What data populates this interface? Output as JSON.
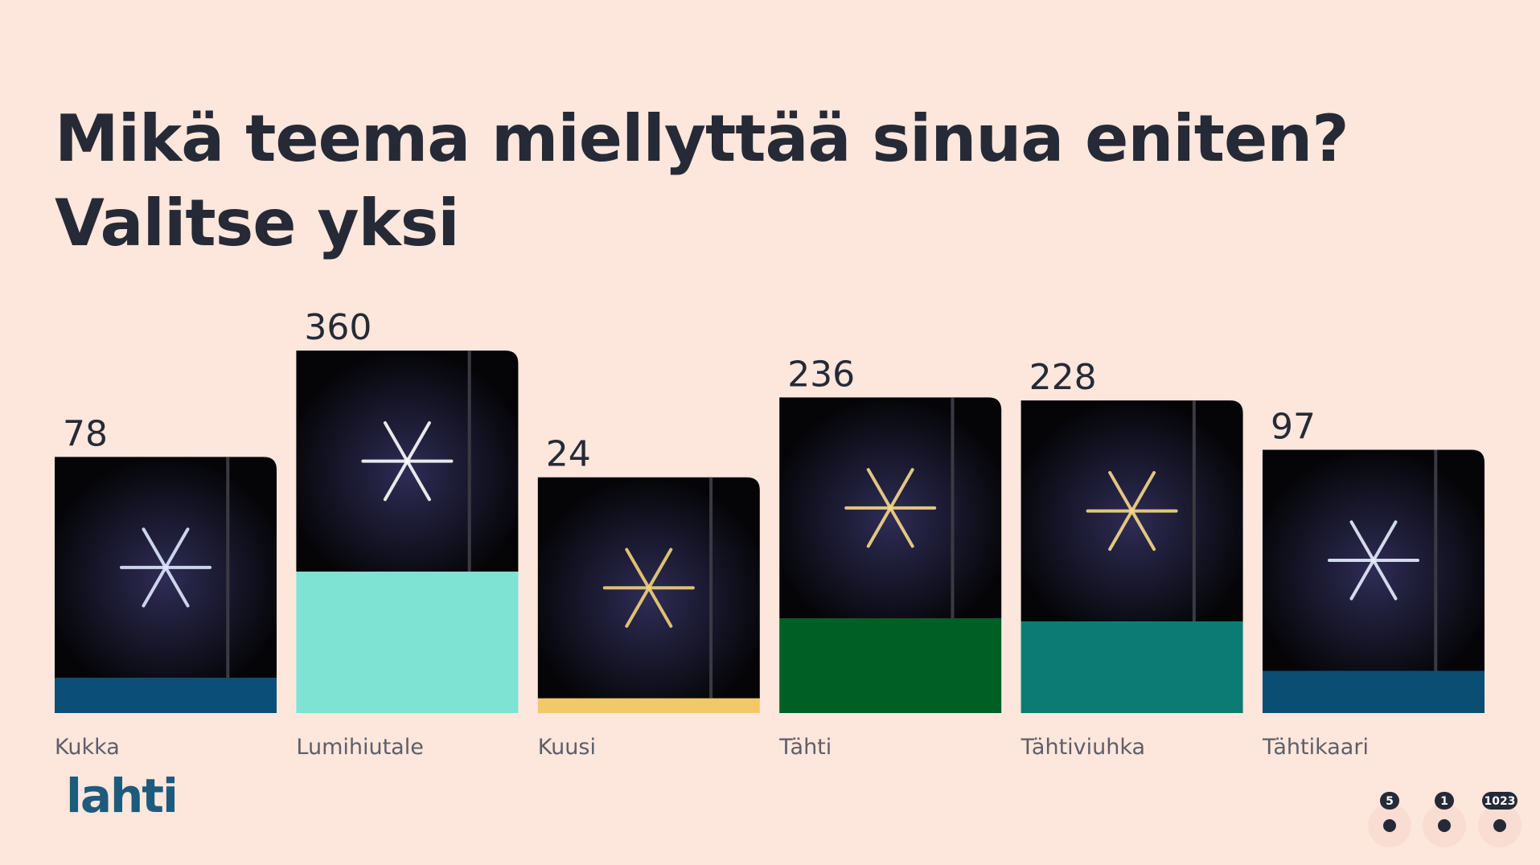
{
  "chart_data": {
    "type": "bar",
    "title": "Mikä teema miellyttää sinua eniten?",
    "subtitle": "Valitse yksi",
    "categories": [
      "Kukka",
      "Lumihiutale",
      "Kuusi",
      "Tähti",
      "Tähtiviuhka",
      "Tähtikaari"
    ],
    "values": [
      78,
      360,
      24,
      236,
      228,
      97
    ],
    "colors": [
      "#0b4f78",
      "#7fe3d4",
      "#f3c869",
      "#005f24",
      "#0b7b74",
      "#0b4e73"
    ]
  },
  "logo": "lahti",
  "reactions": [
    {
      "count": 5
    },
    {
      "count": 1
    },
    {
      "count": 1023
    }
  ]
}
